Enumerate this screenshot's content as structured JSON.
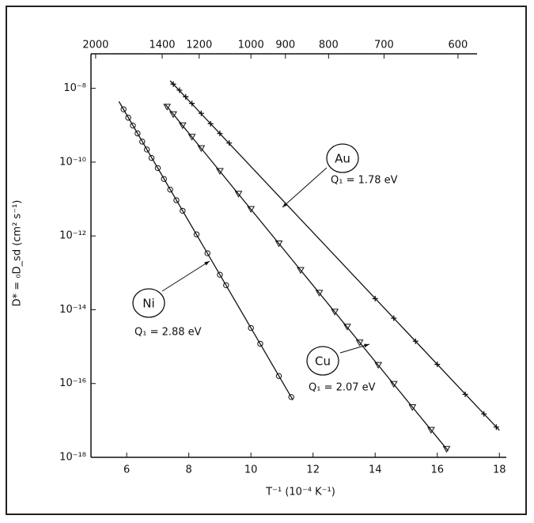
{
  "chart_data": {
    "type": "scatter",
    "xlabel": "T⁻¹ (10⁻⁴ K⁻¹)",
    "ylabel": "D* = ₀D_sd (cm² s⁻¹)",
    "xlim": [
      4.85,
      18.35
    ],
    "xticks": [
      6,
      8,
      10,
      12,
      14,
      16,
      18
    ],
    "x2_scale": "reciprocal",
    "x2ticks": [
      2000,
      1400,
      1200,
      1000,
      900,
      800,
      700,
      600
    ],
    "ylim": [
      1e-18,
      1e-07
    ],
    "log_y": true,
    "yticks": [
      {
        "value": 1e-08,
        "label": "10⁻⁸"
      },
      {
        "value": 1e-10,
        "label": "10⁻¹⁰"
      },
      {
        "value": 1e-12,
        "label": "10⁻¹²"
      },
      {
        "value": 1e-14,
        "label": "10⁻¹⁴"
      },
      {
        "value": 1e-16,
        "label": "10⁻¹⁶"
      },
      {
        "value": 1e-18,
        "label": "10⁻¹⁸"
      }
    ],
    "color": "#111111",
    "series": [
      {
        "name": "Ni",
        "annotation": "Q₁ = 2.88 eV",
        "marker": "circle",
        "x": [
          5.9,
          6.05,
          6.2,
          6.35,
          6.5,
          6.65,
          6.8,
          7.0,
          7.2,
          7.4,
          7.6,
          7.8,
          8.25,
          8.6,
          9.0,
          9.2,
          10.0,
          10.3,
          10.9,
          11.3
        ],
        "values": [
          2.7e-09,
          1.6e-09,
          9.8e-10,
          6e-10,
          3.6e-10,
          2.2e-10,
          1.3e-10,
          6.9e-11,
          3.5e-11,
          1.8e-11,
          9.3e-12,
          4.8e-12,
          1.1e-12,
          3.4e-13,
          8.9e-14,
          4.6e-14,
          3.2e-15,
          1.2e-15,
          1.6e-16,
          4.3e-17
        ],
        "fit": {
          "x": [
            5.75,
            11.35
          ],
          "values": [
            4.4e-09,
            3.6e-17
          ]
        }
      },
      {
        "name": "Au",
        "annotation": "Q₁ = 1.78 eV",
        "marker": "plus",
        "x": [
          7.5,
          7.7,
          7.9,
          8.1,
          8.4,
          8.7,
          9.0,
          9.3,
          14.0,
          14.6,
          15.3,
          16.0,
          16.9,
          17.5,
          17.9
        ],
        "values": [
          1.3e-08,
          8.9e-09,
          5.9e-09,
          3.9e-09,
          2.1e-09,
          1.1e-09,
          6e-10,
          3.3e-10,
          2e-14,
          5.9e-15,
          1.4e-15,
          3.3e-16,
          5.1e-17,
          1.5e-17,
          6.6e-18
        ],
        "fit": {
          "x": [
            7.4,
            18.0
          ],
          "values": [
            1.6e-08,
            5.4e-18
          ]
        }
      },
      {
        "name": "Cu",
        "annotation": "Q₁ = 2.07 eV",
        "marker": "triangle",
        "x": [
          7.3,
          7.5,
          7.8,
          8.1,
          8.4,
          9.0,
          9.6,
          10.0,
          10.9,
          11.6,
          12.2,
          12.7,
          13.1,
          13.5,
          14.1,
          14.6,
          15.2,
          15.8,
          16.3
        ],
        "values": [
          3.2e-09,
          2e-09,
          1e-09,
          4.9e-10,
          2.4e-10,
          5.8e-11,
          1.4e-11,
          5.4e-12,
          6.3e-13,
          1.2e-13,
          2.9e-14,
          8.9e-15,
          3.5e-15,
          1.3e-15,
          3.2e-16,
          9.8e-17,
          2.3e-17,
          5.6e-18,
          1.7e-18
        ],
        "fit": {
          "x": [
            7.25,
            16.35
          ],
          "values": [
            3.6e-09,
            1.5e-18
          ]
        }
      }
    ]
  }
}
